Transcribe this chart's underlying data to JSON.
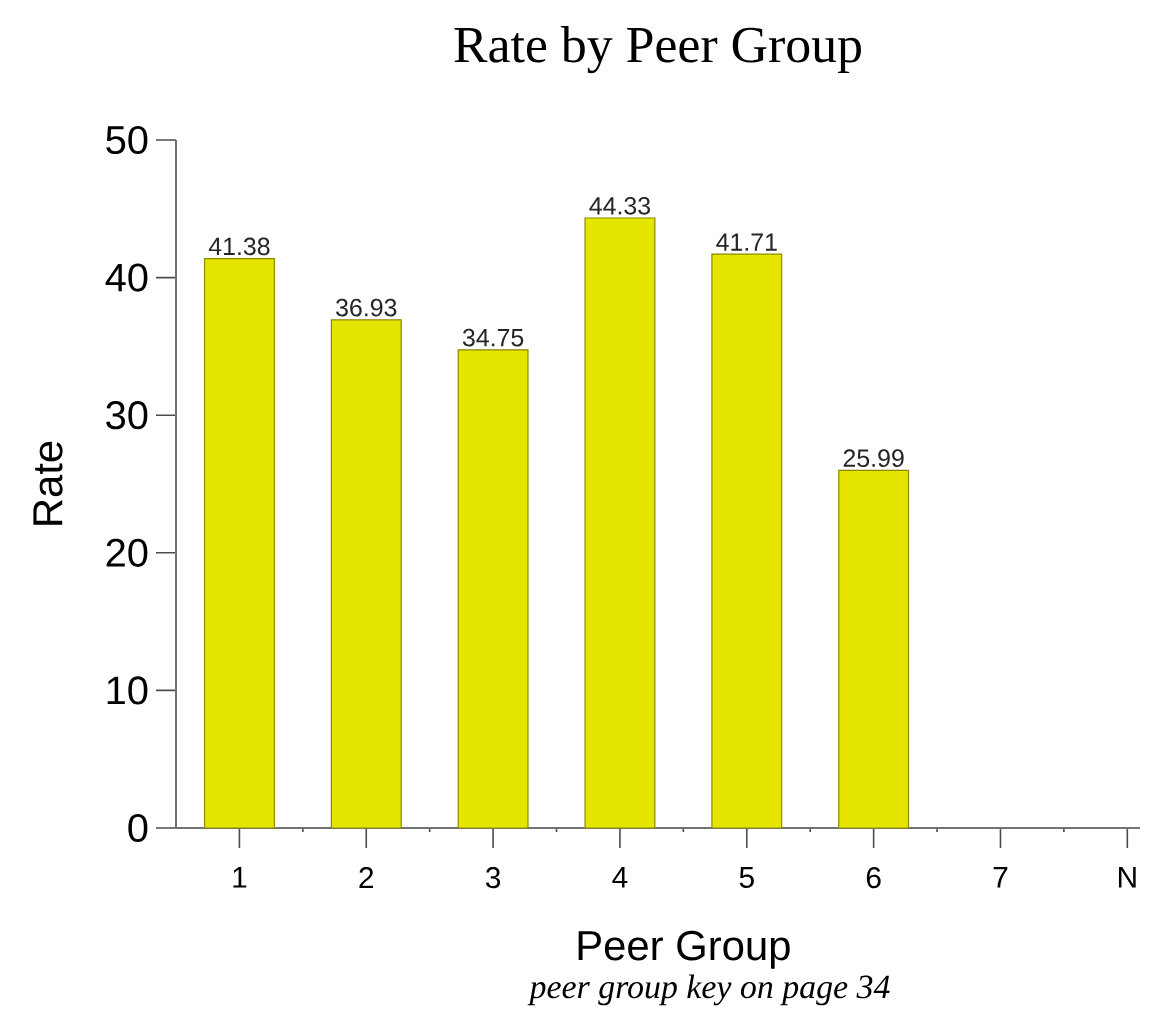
{
  "chart_data": {
    "type": "bar",
    "title": "Rate by Peer Group",
    "xlabel": "Peer Group",
    "ylabel": "Rate",
    "annotations": [
      "*peer group key on page 34*"
    ],
    "categories": [
      "1",
      "2",
      "3",
      "4",
      "5",
      "6",
      "7",
      "N"
    ],
    "values": [
      41.38,
      36.93,
      34.75,
      44.33,
      41.71,
      25.99,
      null,
      null
    ],
    "color": "#e5e500",
    "data_labels": true,
    "ylim": [
      0,
      50
    ],
    "yticks": [
      0,
      10,
      20,
      30,
      40,
      50
    ]
  }
}
